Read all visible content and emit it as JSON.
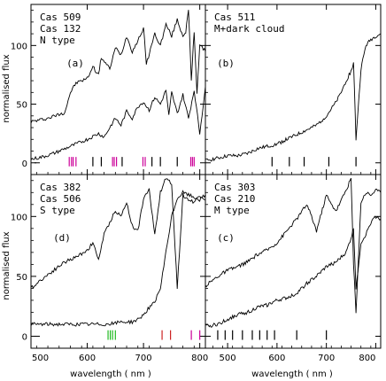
{
  "chart_data": [
    {
      "type": "line",
      "panel": "(a)",
      "annotations": [
        "Cas 509",
        "Cas 132",
        "N type"
      ],
      "xlim": [
        500,
        810
      ],
      "ylim": [
        -10,
        135
      ],
      "series": [
        {
          "x": [
            500,
            530,
            560,
            570,
            580,
            600,
            610,
            620,
            625,
            640,
            650,
            660,
            670,
            680,
            690,
            700,
            705,
            720,
            730,
            740,
            750,
            760,
            770,
            775,
            780,
            785,
            790,
            795,
            800,
            810
          ],
          "y": [
            35,
            38,
            43,
            60,
            68,
            72,
            82,
            75,
            90,
            80,
            98,
            92,
            108,
            95,
            104,
            115,
            84,
            110,
            100,
            118,
            108,
            122,
            108,
            112,
            130,
            70,
            112,
            60,
            100,
            95
          ]
        },
        {
          "x": [
            500,
            520,
            540,
            560,
            580,
            600,
            620,
            630,
            640,
            650,
            660,
            670,
            680,
            690,
            700,
            710,
            720,
            730,
            740,
            745,
            750,
            760,
            770,
            780,
            790,
            800,
            810
          ],
          "y": [
            3,
            5,
            8,
            12,
            16,
            20,
            25,
            22,
            30,
            38,
            32,
            44,
            38,
            48,
            52,
            45,
            56,
            50,
            62,
            40,
            60,
            42,
            58,
            38,
            62,
            25,
            65
          ]
        }
      ],
      "ticks_magenta": [
        568,
        572,
        575,
        580,
        645,
        648,
        652,
        699,
        703,
        784,
        787,
        790
      ],
      "ticks_black": [
        610,
        625,
        662,
        715,
        730,
        760
      ]
    },
    {
      "type": "line",
      "panel": "(b)",
      "annotations": [
        "Cas 511",
        "M+dark cloud"
      ],
      "xlim": [
        455,
        810
      ],
      "ylim": [
        -10,
        135
      ],
      "series": [
        {
          "x": [
            455,
            480,
            500,
            520,
            540,
            560,
            580,
            600,
            620,
            640,
            660,
            680,
            700,
            710,
            720,
            730,
            740,
            750,
            755,
            760,
            770,
            780,
            790,
            800,
            810
          ],
          "y": [
            2,
            4,
            6,
            6,
            8,
            12,
            14,
            16,
            20,
            24,
            28,
            32,
            40,
            46,
            52,
            60,
            70,
            78,
            85,
            20,
            80,
            100,
            105,
            108,
            110
          ]
        }
      ],
      "ticks_black": [
        590,
        625,
        655,
        705,
        760
      ]
    },
    {
      "type": "line",
      "panel": "(d)",
      "annotations": [
        "Cas 382",
        "Cas 506",
        "S type"
      ],
      "xlim": [
        500,
        810
      ],
      "ylim": [
        -10,
        135
      ],
      "series": [
        {
          "x": [
            500,
            520,
            540,
            560,
            580,
            600,
            610,
            620,
            630,
            640,
            650,
            660,
            670,
            680,
            690,
            700,
            710,
            720,
            730,
            740,
            750,
            760,
            770,
            780,
            790,
            800,
            810
          ],
          "y": [
            40,
            48,
            55,
            62,
            66,
            72,
            78,
            64,
            85,
            95,
            105,
            100,
            112,
            92,
            88,
            115,
            122,
            85,
            120,
            132,
            128,
            40,
            118,
            114,
            112,
            118,
            114
          ]
        },
        {
          "x": [
            500,
            560,
            600,
            640,
            660,
            680,
            690,
            700,
            710,
            720,
            730,
            740,
            750,
            760,
            770,
            780,
            790,
            800,
            810
          ],
          "y": [
            10,
            10,
            10,
            10,
            12,
            12,
            14,
            18,
            24,
            28,
            40,
            70,
            100,
            115,
            120,
            118,
            116,
            114,
            118
          ]
        }
      ],
      "ticks_green": [
        637,
        641,
        645,
        650
      ],
      "ticks_red": [
        733,
        748
      ],
      "ticks_magenta": [
        785,
        800
      ]
    },
    {
      "type": "line",
      "panel": "(c)",
      "annotations": [
        "Cas 303",
        "Cas 210",
        "M type"
      ],
      "xlim": [
        455,
        810
      ],
      "ylim": [
        -10,
        135
      ],
      "series": [
        {
          "x": [
            455,
            480,
            500,
            520,
            540,
            560,
            580,
            600,
            620,
            640,
            660,
            670,
            680,
            700,
            710,
            720,
            740,
            750,
            755,
            760,
            770,
            780,
            790,
            800,
            810
          ],
          "y": [
            42,
            50,
            55,
            58,
            62,
            68,
            72,
            78,
            88,
            98,
            110,
            100,
            88,
            118,
            110,
            105,
            122,
            132,
            60,
            20,
            112,
            120,
            118,
            122,
            120
          ]
        },
        {
          "x": [
            455,
            480,
            500,
            520,
            540,
            560,
            580,
            600,
            620,
            640,
            660,
            680,
            700,
            720,
            740,
            750,
            755,
            760,
            770,
            780,
            790,
            800,
            810
          ],
          "y": [
            8,
            10,
            14,
            18,
            20,
            24,
            26,
            30,
            32,
            36,
            44,
            50,
            58,
            62,
            70,
            82,
            90,
            40,
            78,
            85,
            95,
            100,
            98
          ]
        }
      ],
      "ticks_black": [
        480,
        495,
        510,
        530,
        550,
        565,
        580,
        595,
        640,
        700
      ]
    }
  ],
  "axes": {
    "xlabel": "wavelength ( nm )",
    "ylabel": "normalised flux",
    "y_ticks": [
      "0",
      "50",
      "100"
    ],
    "x_ticks_left": [
      "500",
      "600",
      "700",
      "800"
    ],
    "x_ticks_right": [
      "500",
      "600",
      "700",
      "800"
    ]
  },
  "colors": {
    "line": "#000000",
    "magenta": "#cc0099",
    "green": "#22bb22",
    "red": "#cc2222"
  }
}
